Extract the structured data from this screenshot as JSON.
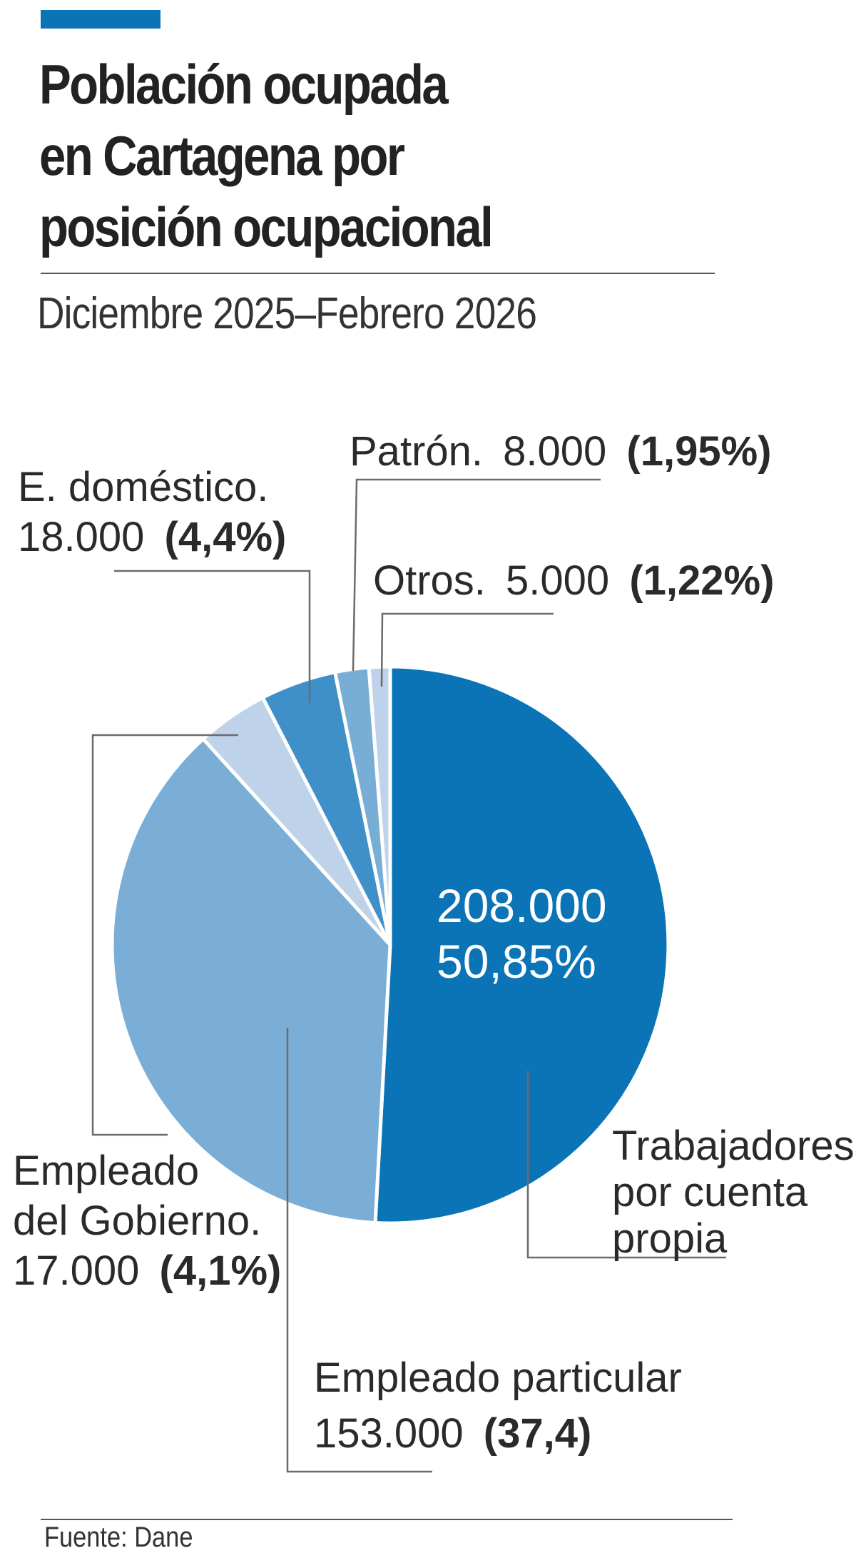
{
  "header": {
    "title_lines": [
      "Población ocupada",
      "en Cartagena por",
      "posición ocupacional"
    ],
    "subtitle": "Diciembre 2025–Febrero 2026"
  },
  "chart_data": {
    "type": "pie",
    "title": "Población ocupada en Cartagena por posición ocupacional",
    "subtitle": "Diciembre 2025–Febrero 2026",
    "slices": [
      {
        "label": "Trabajadores por cuenta propia",
        "value": 208000,
        "percent": 50.85,
        "color": "#0a74b6",
        "label_lines": [
          "Trabajadores",
          "por cuenta",
          "propia"
        ],
        "value_text": "208.000",
        "percent_text": "50,85%"
      },
      {
        "label": "Empleado particular",
        "value": 153000,
        "percent": 37.4,
        "color": "#7aaed6",
        "label_lines": [
          "Empleado particular"
        ],
        "value_text": "153.000",
        "percent_text": "(37,4)"
      },
      {
        "label": "Empleado del Gobierno",
        "value": 17000,
        "percent": 4.1,
        "color": "#bed3e9",
        "label_lines": [
          "Empleado",
          "del Gobierno."
        ],
        "value_text": "17.000",
        "percent_text": "(4,1%)"
      },
      {
        "label": "E. doméstico",
        "value": 18000,
        "percent": 4.4,
        "color": "#3f90c8",
        "label_lines": [
          "E. doméstico."
        ],
        "value_text": "18.000",
        "percent_text": "(4,4%)"
      },
      {
        "label": "Patrón",
        "value": 8000,
        "percent": 1.95,
        "color": "#78add6",
        "label_lines": [
          "Patrón."
        ],
        "value_text": "8.000",
        "percent_text": "(1,95%)"
      },
      {
        "label": "Otros",
        "value": 5000,
        "percent": 1.22,
        "color": "#bed3e9",
        "label_lines": [
          "Otros."
        ],
        "value_text": "5.000",
        "percent_text": "(1,22%)"
      }
    ]
  },
  "footer": {
    "source": "Fuente: Dane"
  }
}
